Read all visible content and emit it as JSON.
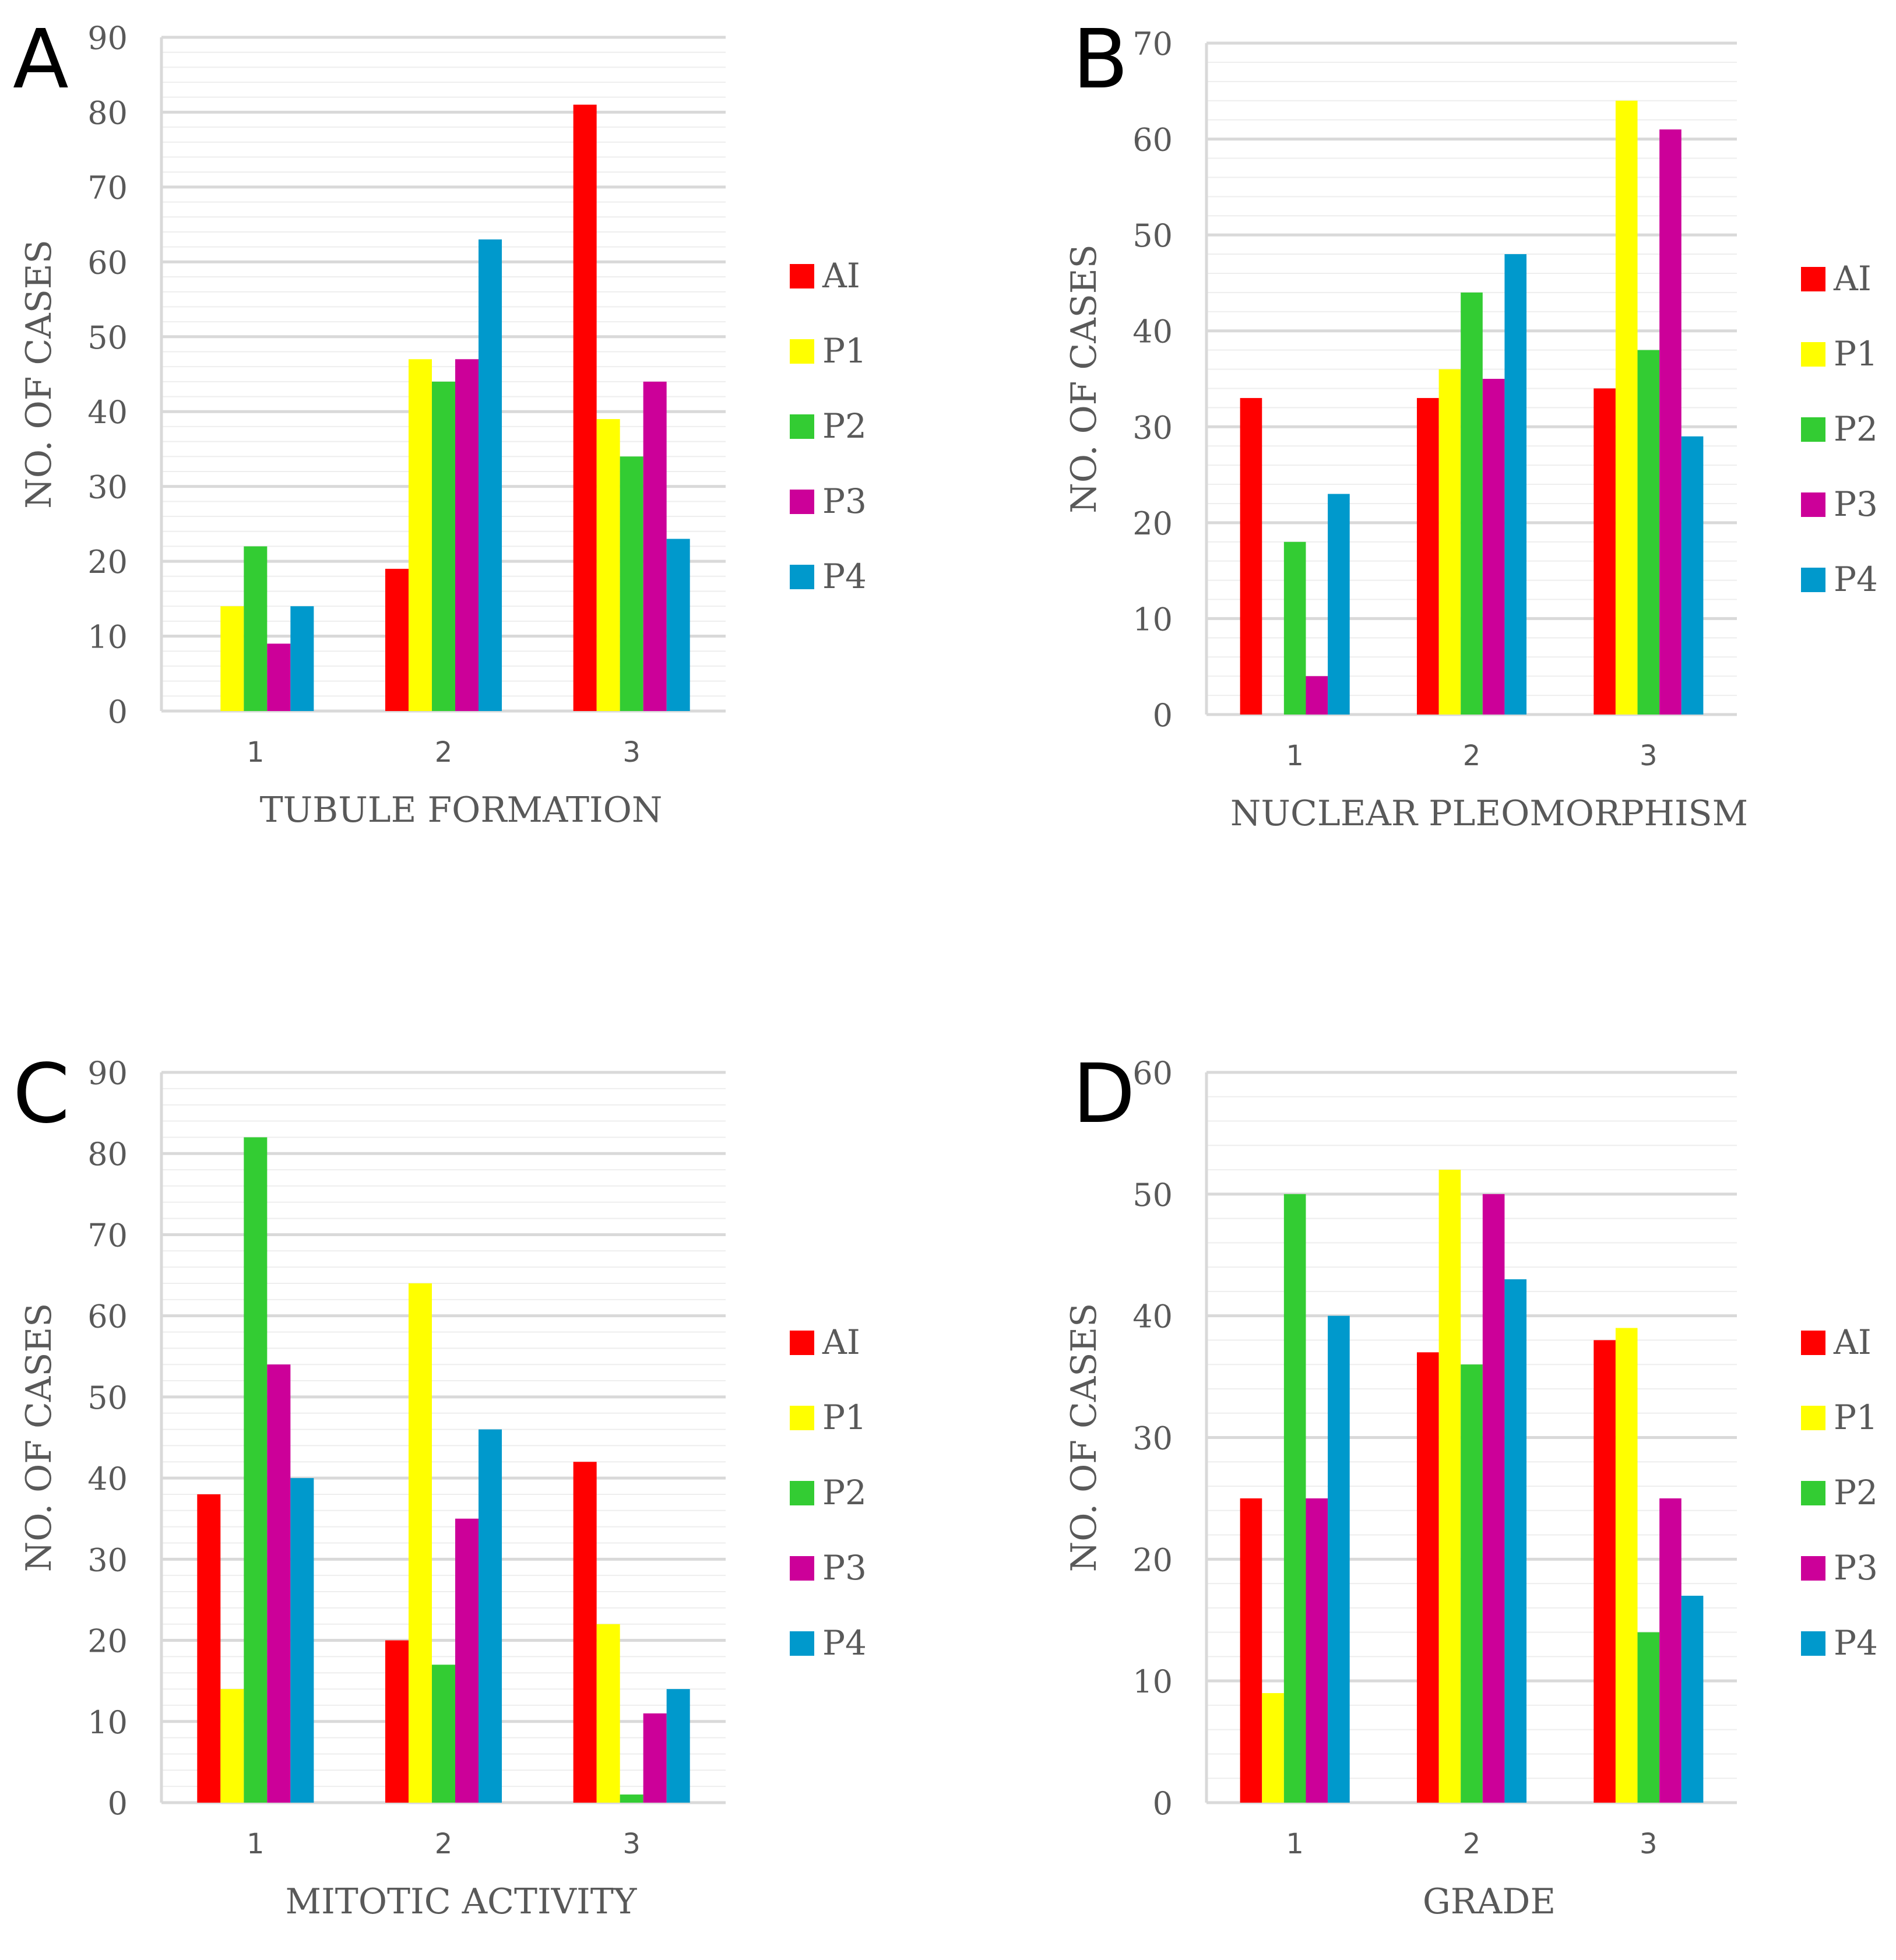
{
  "colors": {
    "AI": "#ff0000",
    "P1": "#ffff00",
    "P2": "#33cc33",
    "P3": "#cc0099",
    "P4": "#0099cc",
    "major_grid": "#d9d9d9",
    "minor_grid": "#eeeeee",
    "axis_text": "#595959"
  },
  "chart_data": [
    {
      "panel": "A",
      "type": "bar",
      "categories": [
        "1",
        "2",
        "3"
      ],
      "xlabel": "TUBULE FORMATION",
      "ylabel": "NO. OF CASES",
      "ylim": [
        0,
        90
      ],
      "major_ticks": [
        0,
        10,
        20,
        30,
        40,
        50,
        60,
        70,
        80,
        90
      ],
      "minor_step": 2,
      "legend_position": "right",
      "series": [
        {
          "name": "AI",
          "values": [
            0,
            19,
            81
          ]
        },
        {
          "name": "P1",
          "values": [
            14,
            47,
            39
          ]
        },
        {
          "name": "P2",
          "values": [
            22,
            44,
            34
          ]
        },
        {
          "name": "P3",
          "values": [
            9,
            47,
            44
          ]
        },
        {
          "name": "P4",
          "values": [
            14,
            63,
            23
          ]
        }
      ]
    },
    {
      "panel": "B",
      "type": "bar",
      "categories": [
        "1",
        "2",
        "3"
      ],
      "xlabel": "NUCLEAR PLEOMORPHISM",
      "ylabel": "NO. OF CASES",
      "ylim": [
        0,
        70
      ],
      "major_ticks": [
        0,
        10,
        20,
        30,
        40,
        50,
        60,
        70
      ],
      "minor_step": 2,
      "legend_position": "right",
      "series": [
        {
          "name": "AI",
          "values": [
            33,
            33,
            34
          ]
        },
        {
          "name": "P1",
          "values": [
            0,
            36,
            64
          ]
        },
        {
          "name": "P2",
          "values": [
            18,
            44,
            38
          ]
        },
        {
          "name": "P3",
          "values": [
            4,
            35,
            61
          ]
        },
        {
          "name": "P4",
          "values": [
            23,
            48,
            29
          ]
        }
      ]
    },
    {
      "panel": "C",
      "type": "bar",
      "categories": [
        "1",
        "2",
        "3"
      ],
      "xlabel": "MITOTIC ACTIVITY",
      "ylabel": "NO. OF CASES",
      "ylim": [
        0,
        90
      ],
      "major_ticks": [
        0,
        10,
        20,
        30,
        40,
        50,
        60,
        70,
        80,
        90
      ],
      "minor_step": 2,
      "legend_position": "right",
      "series": [
        {
          "name": "AI",
          "values": [
            38,
            20,
            42
          ]
        },
        {
          "name": "P1",
          "values": [
            14,
            64,
            22
          ]
        },
        {
          "name": "P2",
          "values": [
            82,
            17,
            1
          ]
        },
        {
          "name": "P3",
          "values": [
            54,
            35,
            11
          ]
        },
        {
          "name": "P4",
          "values": [
            40,
            46,
            14
          ]
        }
      ]
    },
    {
      "panel": "D",
      "type": "bar",
      "categories": [
        "1",
        "2",
        "3"
      ],
      "xlabel": "GRADE",
      "ylabel": "NO. OF CASES",
      "ylim": [
        0,
        60
      ],
      "major_ticks": [
        0,
        10,
        20,
        30,
        40,
        50,
        60
      ],
      "minor_step": 2,
      "legend_position": "right",
      "series": [
        {
          "name": "AI",
          "values": [
            25,
            37,
            38
          ]
        },
        {
          "name": "P1",
          "values": [
            9,
            52,
            39
          ]
        },
        {
          "name": "P2",
          "values": [
            50,
            36,
            14
          ]
        },
        {
          "name": "P3",
          "values": [
            25,
            50,
            25
          ]
        },
        {
          "name": "P4",
          "values": [
            40,
            43,
            17
          ]
        }
      ]
    }
  ]
}
